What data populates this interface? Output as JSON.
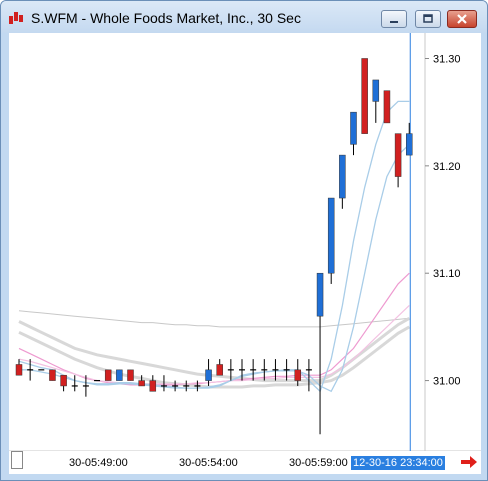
{
  "window": {
    "title": "S.WFM - Whole Foods Market, Inc., 30 Sec",
    "controls": [
      "minimize",
      "maximize",
      "close"
    ]
  },
  "colors": {
    "up": "#1f6fd6",
    "down": "#d12020",
    "doji": "#000000",
    "ma_blue": "#a9cde8",
    "ma_pink": "#ee9ad0",
    "ma_gray": "#d8d8d8",
    "cursor": "#2a7fe0"
  },
  "axis": {
    "y_ticks": [
      "31.30",
      "31.20",
      "31.10",
      "31.00"
    ],
    "x_ticks": [
      "30-05:49:00",
      "30-05:54:00",
      "30-05:59:00"
    ],
    "cursor_label": "12-30-16 23:34:00"
  },
  "chart_data": {
    "type": "candlestick",
    "ylim": [
      30.94,
      31.32
    ],
    "bars": [
      {
        "o": 31.015,
        "h": 31.02,
        "l": 31.005,
        "c": 31.005
      },
      {
        "o": 31.01,
        "h": 31.02,
        "l": 31.0,
        "c": 31.01
      },
      {
        "o": 31.01,
        "h": 31.01,
        "l": 31.01,
        "c": 31.01
      },
      {
        "o": 31.01,
        "h": 31.01,
        "l": 31.0,
        "c": 31.0
      },
      {
        "o": 31.005,
        "h": 31.005,
        "l": 30.99,
        "c": 30.995
      },
      {
        "o": 30.995,
        "h": 31.005,
        "l": 30.99,
        "c": 30.995
      },
      {
        "o": 30.995,
        "h": 31.005,
        "l": 30.985,
        "c": 30.995
      },
      {
        "o": 31.0,
        "h": 31.0,
        "l": 31.0,
        "c": 31.0
      },
      {
        "o": 31.01,
        "h": 31.01,
        "l": 31.0,
        "c": 31.0
      },
      {
        "o": 31.0,
        "h": 31.01,
        "l": 31.0,
        "c": 31.01
      },
      {
        "o": 31.01,
        "h": 31.01,
        "l": 31.0,
        "c": 31.0
      },
      {
        "o": 31.0,
        "h": 31.005,
        "l": 30.995,
        "c": 30.995
      },
      {
        "o": 31.0,
        "h": 31.005,
        "l": 30.99,
        "c": 30.99
      },
      {
        "o": 30.995,
        "h": 31.005,
        "l": 30.99,
        "c": 30.995
      },
      {
        "o": 30.995,
        "h": 31.0,
        "l": 30.99,
        "c": 30.995
      },
      {
        "o": 30.995,
        "h": 31.0,
        "l": 30.99,
        "c": 30.995
      },
      {
        "o": 30.995,
        "h": 31.0,
        "l": 30.99,
        "c": 30.995
      },
      {
        "o": 31.0,
        "h": 31.02,
        "l": 30.995,
        "c": 31.01
      },
      {
        "o": 31.015,
        "h": 31.02,
        "l": 31.005,
        "c": 31.005
      },
      {
        "o": 31.01,
        "h": 31.02,
        "l": 31.0,
        "c": 31.01
      },
      {
        "o": 31.01,
        "h": 31.02,
        "l": 31.0,
        "c": 31.01
      },
      {
        "o": 31.01,
        "h": 31.02,
        "l": 31.0,
        "c": 31.01
      },
      {
        "o": 31.01,
        "h": 31.02,
        "l": 31.0,
        "c": 31.01
      },
      {
        "o": 31.01,
        "h": 31.02,
        "l": 31.0,
        "c": 31.01
      },
      {
        "o": 31.01,
        "h": 31.02,
        "l": 31.0,
        "c": 31.01
      },
      {
        "o": 31.01,
        "h": 31.02,
        "l": 30.995,
        "c": 31.0
      },
      {
        "o": 31.01,
        "h": 31.02,
        "l": 30.99,
        "c": 31.01
      },
      {
        "o": 31.06,
        "h": 31.1,
        "l": 30.95,
        "c": 31.1
      },
      {
        "o": 31.1,
        "h": 31.17,
        "l": 31.09,
        "c": 31.17
      },
      {
        "o": 31.17,
        "h": 31.21,
        "l": 31.16,
        "c": 31.21
      },
      {
        "o": 31.22,
        "h": 31.25,
        "l": 31.21,
        "c": 31.25
      },
      {
        "o": 31.3,
        "h": 31.3,
        "l": 31.23,
        "c": 31.23
      },
      {
        "o": 31.26,
        "h": 31.28,
        "l": 31.24,
        "c": 31.28
      },
      {
        "o": 31.27,
        "h": 31.27,
        "l": 31.24,
        "c": 31.24
      },
      {
        "o": 31.23,
        "h": 31.23,
        "l": 31.18,
        "c": 31.19
      },
      {
        "o": 31.21,
        "h": 31.24,
        "l": 31.21,
        "c": 31.23
      }
    ],
    "ma_fast": [
      31.018,
      31.015,
      31.012,
      31.01,
      31.005,
      31.0,
      30.998,
      30.997,
      30.997,
      30.998,
      30.998,
      30.997,
      30.996,
      30.995,
      30.994,
      30.993,
      30.993,
      30.993,
      30.995,
      31.0,
      31.005,
      31.007,
      31.008,
      31.009,
      31.01,
      31.01,
      31.0,
      30.99,
      31.02,
      31.07,
      31.13,
      31.18,
      31.22,
      31.25,
      31.26,
      31.26
    ],
    "ma_fast2": [
      31.01,
      31.01,
      31.008,
      31.006,
      31.003,
      31.0,
      30.998,
      30.996,
      30.996,
      30.997,
      30.997,
      30.996,
      30.995,
      30.994,
      30.993,
      30.993,
      30.993,
      30.994,
      30.996,
      31.0,
      31.004,
      31.006,
      31.008,
      31.009,
      31.009,
      31.009,
      31.005,
      30.995,
      30.99,
      31.01,
      31.05,
      31.1,
      31.15,
      31.19,
      31.21,
      31.22
    ],
    "ma_mid": [
      31.03,
      31.025,
      31.02,
      31.015,
      31.01,
      31.006,
      31.002,
      31.0,
      30.998,
      30.997,
      30.996,
      30.996,
      30.996,
      30.996,
      30.996,
      30.997,
      30.997,
      30.998,
      30.999,
      31.0,
      31.001,
      31.002,
      31.003,
      31.004,
      31.004,
      31.005,
      31.005,
      31.005,
      31.01,
      31.02,
      31.03,
      31.045,
      31.06,
      31.075,
      31.09,
      31.1
    ],
    "ma_pink2": [
      31.02,
      31.018,
      31.015,
      31.012,
      31.009,
      31.006,
      31.003,
      31.0,
      30.999,
      30.998,
      30.997,
      30.997,
      30.997,
      30.997,
      30.997,
      30.997,
      30.998,
      30.998,
      30.999,
      31.0,
      31.0,
      31.001,
      31.002,
      31.002,
      31.003,
      31.003,
      31.003,
      31.003,
      31.006,
      31.012,
      31.02,
      31.03,
      31.04,
      31.05,
      31.06,
      31.07
    ],
    "ma_slow": [
      31.065,
      31.064,
      31.063,
      31.062,
      31.061,
      31.06,
      31.059,
      31.058,
      31.057,
      31.056,
      31.055,
      31.054,
      31.054,
      31.053,
      31.052,
      31.052,
      31.051,
      31.051,
      31.05,
      31.05,
      31.05,
      31.05,
      31.05,
      31.05,
      31.05,
      31.05,
      31.05,
      31.05,
      31.051,
      31.052,
      31.053,
      31.054,
      31.055,
      31.056,
      31.057,
      31.058
    ],
    "ma_gray1": [
      31.055,
      31.05,
      31.045,
      31.04,
      31.035,
      31.03,
      31.027,
      31.024,
      31.022,
      31.02,
      31.018,
      31.016,
      31.014,
      31.012,
      31.01,
      31.008,
      31.006,
      31.005,
      31.004,
      31.003,
      31.002,
      31.001,
      31.0,
      31.0,
      31.0,
      31.0,
      31.0,
      31.0,
      31.005,
      31.012,
      31.02,
      31.028,
      31.036,
      31.044,
      31.052,
      31.058
    ],
    "ma_gray2": [
      31.045,
      31.04,
      31.035,
      31.03,
      31.025,
      31.02,
      31.016,
      31.012,
      31.009,
      31.006,
      31.004,
      31.002,
      31.0,
      30.998,
      30.997,
      30.996,
      30.995,
      30.994,
      30.994,
      30.994,
      30.994,
      30.995,
      30.995,
      30.996,
      30.996,
      30.996,
      30.997,
      30.998,
      31.0,
      31.005,
      31.012,
      31.02,
      31.028,
      31.036,
      31.044,
      31.05
    ]
  }
}
